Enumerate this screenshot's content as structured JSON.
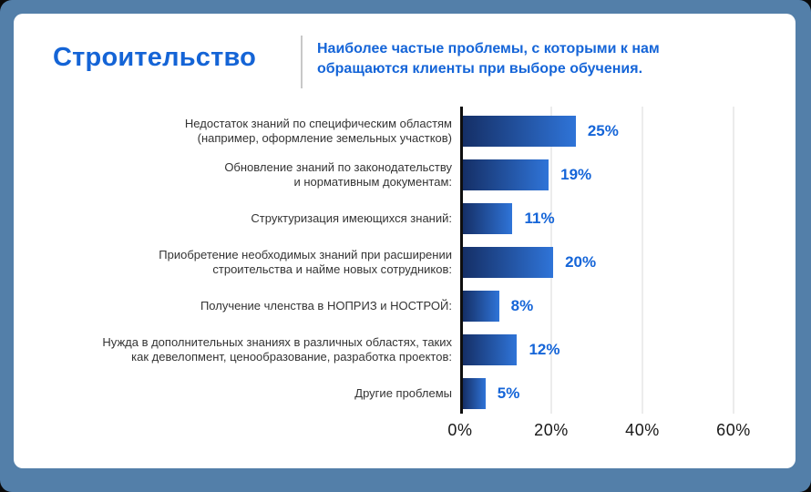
{
  "header": {
    "title": "Строительство",
    "subtitle": "Наиболее частые проблемы, с которыми к нам\nобращаются клиенты при выборе обучения."
  },
  "chart_data": {
    "type": "bar",
    "orientation": "horizontal",
    "title": "Строительство",
    "subtitle": "Наиболее частые проблемы, с которыми к нам обращаются клиенты при выборе обучения.",
    "categories": [
      "Недостаток знаний по специфическим областям\n(например, оформление земельных участков)",
      "Обновление знаний по законодательству\nи нормативным документам:",
      "Структуризация имеющихся знаний:",
      "Приобретение необходимых знаний при расширении\nстроительства и найме новых сотрудников:",
      "Получение членства в НОПРИЗ и НОСТРОЙ:",
      "Нужда в дополнительных знаниях в различных областях, таких\nкак девелопмент, ценообразование, разработка проектов:",
      "Другие проблемы"
    ],
    "values": [
      25,
      19,
      11,
      20,
      8,
      12,
      5
    ],
    "value_labels": [
      "25%",
      "19%",
      "11%",
      "20%",
      "8%",
      "12%",
      "5%"
    ],
    "x_ticks": [
      "0%",
      "20%",
      "40%",
      "60%"
    ],
    "x_tick_values": [
      0,
      20,
      40,
      60
    ],
    "gridline_values": [
      20,
      40,
      60
    ],
    "xmax": 65,
    "xlabel": "",
    "ylabel": "",
    "grid": "vertical",
    "legend": "none"
  },
  "colors": {
    "frame_blue": "#537FA9",
    "accent_blue": "#1565D8",
    "bar_gradient_start": "#152F66",
    "bar_gradient_end": "#2F74D8",
    "axis_black": "#0E0E0E",
    "gridline_gray": "#ECECEC",
    "category_label_gray": "#343434",
    "divider_gray": "#C8C8C8"
  }
}
